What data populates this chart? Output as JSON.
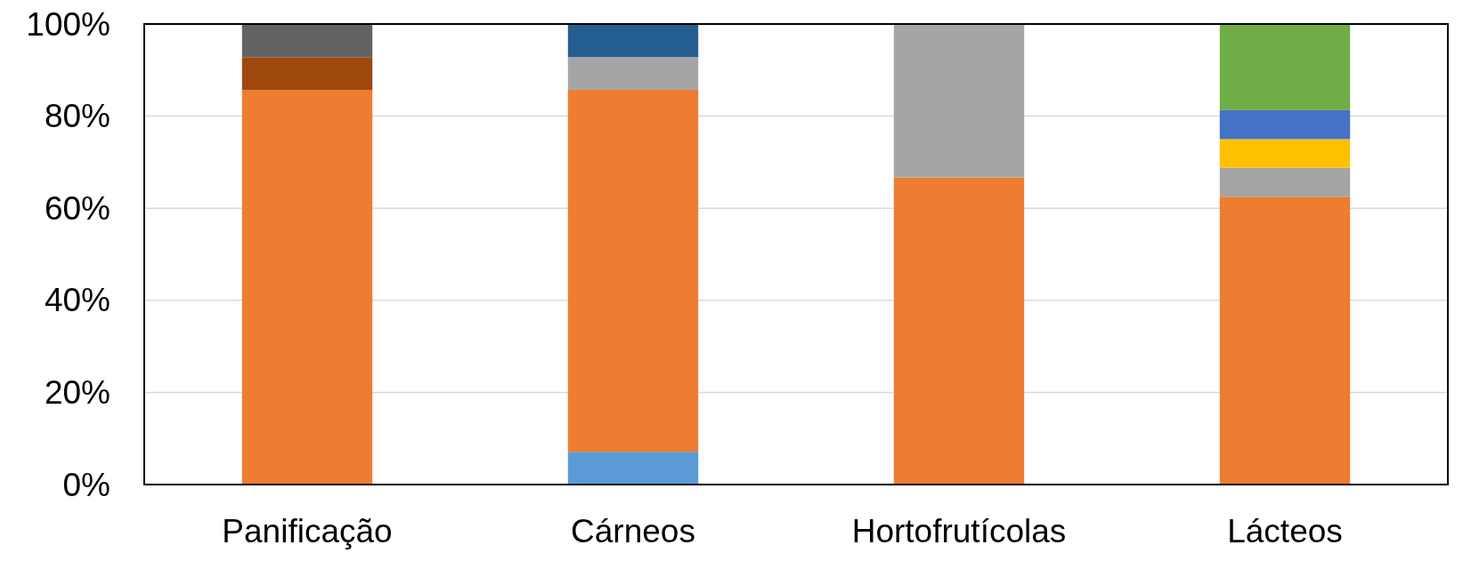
{
  "chart_data": {
    "type": "bar",
    "stacked": true,
    "categories": [
      "Panificação",
      "Cárneos",
      "Hortofrutícolas",
      "Lácteos"
    ],
    "series": [
      {
        "color": "#5b9bd5",
        "values": [
          null,
          7.1,
          null,
          null
        ]
      },
      {
        "color": "#ed7d31",
        "values": [
          85.7,
          78.6,
          66.7,
          62.5
        ]
      },
      {
        "color": "#a5a5a5",
        "values": [
          null,
          7.1,
          33.3,
          6.3
        ]
      },
      {
        "color": "#ffc000",
        "values": [
          null,
          null,
          null,
          6.2
        ]
      },
      {
        "color": "#4472c4",
        "values": [
          null,
          null,
          null,
          6.3
        ]
      },
      {
        "color": "#70ad47",
        "values": [
          null,
          null,
          null,
          18.7
        ]
      },
      {
        "color": "#255e91",
        "values": [
          null,
          7.2,
          null,
          null
        ]
      },
      {
        "color": "#9e480e",
        "values": [
          7.1,
          null,
          null,
          null
        ]
      },
      {
        "color": "#636363",
        "values": [
          7.2,
          null,
          null,
          null
        ]
      }
    ],
    "ylim": [
      0,
      100
    ],
    "yticks": [
      {
        "value": 0,
        "label": "0%"
      },
      {
        "value": 20,
        "label": "20%"
      },
      {
        "value": 40,
        "label": "40%"
      },
      {
        "value": 60,
        "label": "60%"
      },
      {
        "value": 80,
        "label": "80%"
      },
      {
        "value": 100,
        "label": "100%"
      }
    ],
    "grid": "y"
  }
}
